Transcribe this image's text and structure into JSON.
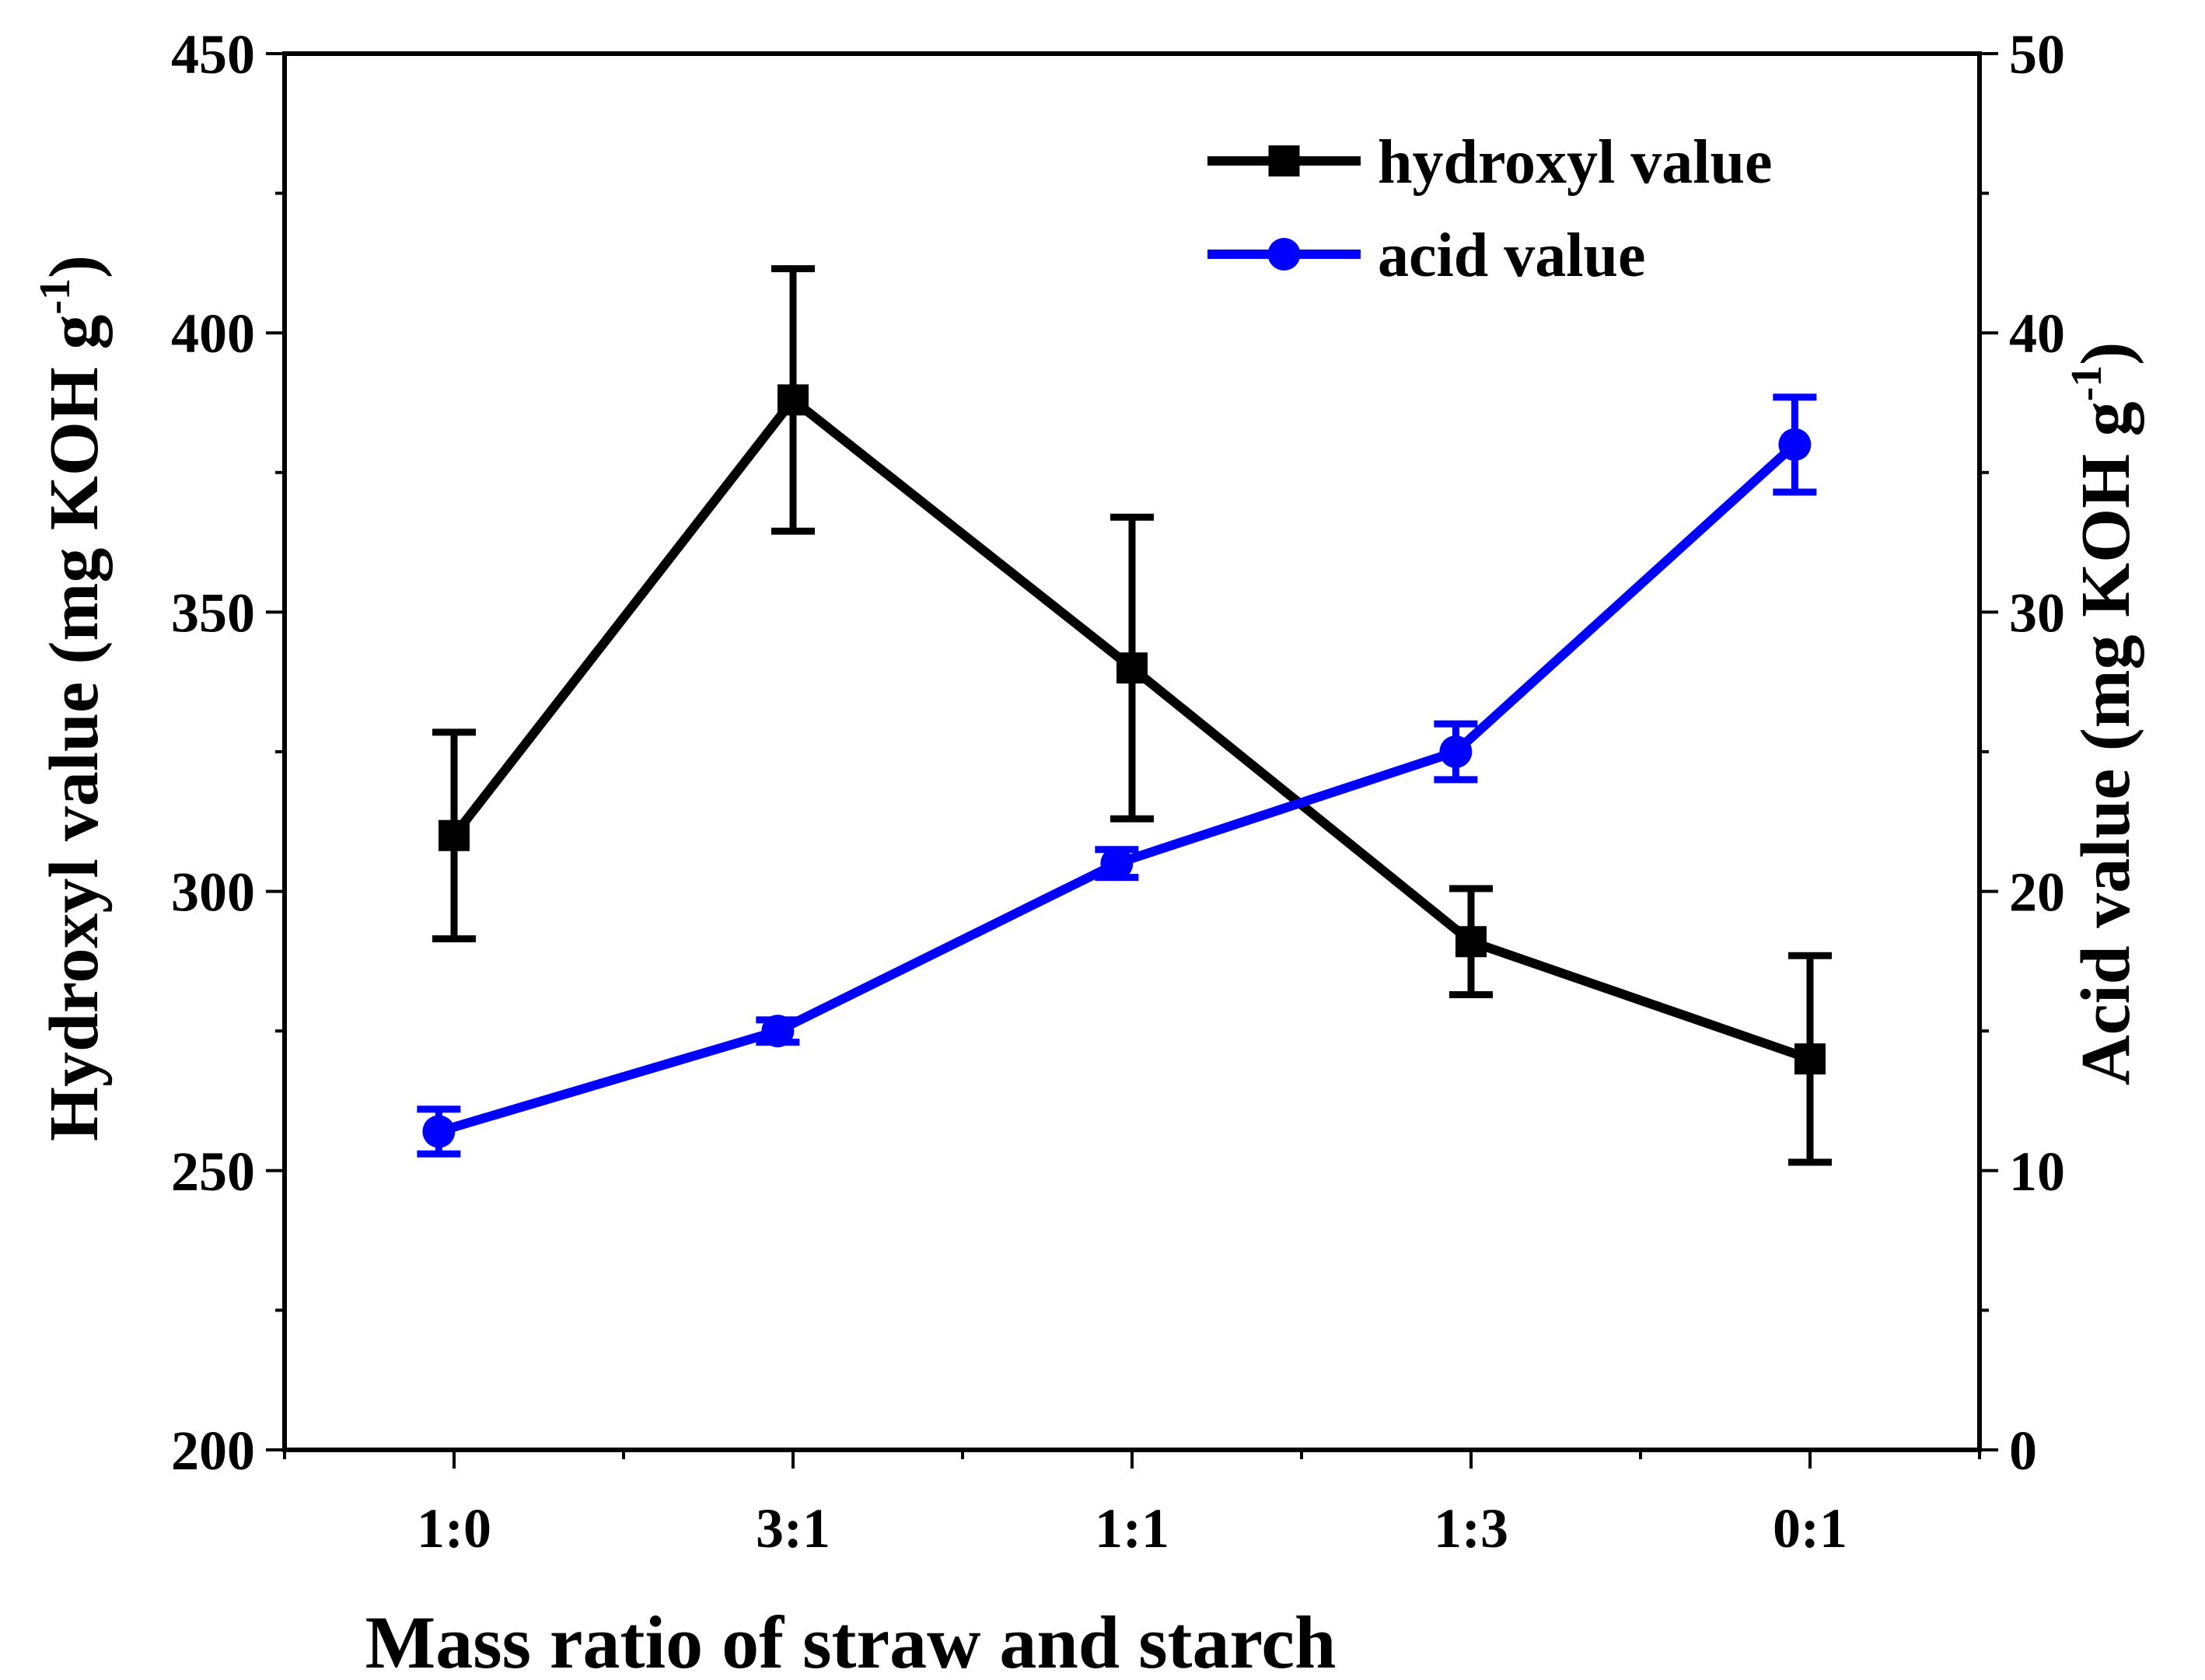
{
  "chart_data": {
    "type": "line",
    "categories": [
      "1:0",
      "3:1",
      "1:1",
      "1:3",
      "0:1"
    ],
    "xlabel": "Mass ratio of straw and starch",
    "y_left": {
      "label": "Hydroxyl value (mg KOH g",
      "label_sup": "-1",
      "label_end": ")",
      "range": [
        200,
        450
      ],
      "ticks": [
        200,
        250,
        300,
        350,
        400,
        450
      ]
    },
    "y_right": {
      "label": "Acid value (mg KOH g",
      "label_sup": "-1",
      "label_end": ")",
      "range": [
        0,
        50
      ],
      "ticks": [
        0,
        10,
        20,
        30,
        40,
        50
      ]
    },
    "series": [
      {
        "name": "hydroxyl value",
        "axis": "left",
        "color": "#000000",
        "marker": "square",
        "values": [
          310,
          388,
          340,
          291,
          270
        ],
        "errors": [
          18.5,
          23.5,
          27,
          9.5,
          18.5
        ]
      },
      {
        "name": "acid value",
        "axis": "right",
        "color": "#0000ff",
        "marker": "circle",
        "values": [
          11.4,
          15.0,
          21.0,
          25.0,
          36.0
        ],
        "errors": [
          0.8,
          0.4,
          0.5,
          1.0,
          1.7
        ]
      }
    ],
    "legend_position": "top-right"
  }
}
